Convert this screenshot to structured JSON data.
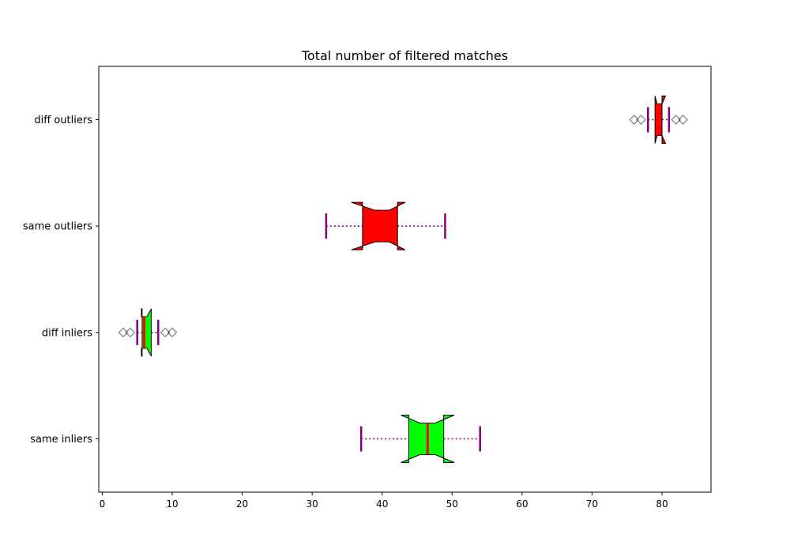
{
  "chart_data": {
    "type": "boxplot",
    "orientation": "horizontal",
    "title": "Total number of filtered matches",
    "xlabel": "",
    "ylabel": "",
    "xlim": [
      -0.5,
      87
    ],
    "xticks": [
      0,
      10,
      20,
      30,
      40,
      50,
      60,
      70,
      80
    ],
    "grid": false,
    "notched": true,
    "categories": [
      "same inliers",
      "diff inliers",
      "same outliers",
      "diff outliers"
    ],
    "boxes": [
      {
        "label": "same inliers",
        "whisker_low": 37,
        "q1": 43.8,
        "notch_low": 45.4,
        "median": 46.5,
        "notch_high": 47.6,
        "q3": 48.8,
        "whisker_high": 54,
        "notch_lo_extent": 42.7,
        "notch_hi_extent": 50.3,
        "fill": "#00ff00",
        "fliers": []
      },
      {
        "label": "diff inliers",
        "whisker_low": 5,
        "q1": 5.7,
        "notch_low": 5.6,
        "median": 6,
        "notch_high": 6.4,
        "q3": 7,
        "whisker_high": 8,
        "notch_lo_extent": 5.6,
        "notch_hi_extent": 7,
        "fill": "#00ff00",
        "fliers": [
          3,
          4,
          9,
          10
        ]
      },
      {
        "label": "same outliers",
        "whisker_low": 32,
        "q1": 37.2,
        "notch_low": 39,
        "median": 40,
        "notch_high": 41,
        "q3": 42.2,
        "whisker_high": 49,
        "notch_lo_extent": 35.6,
        "notch_hi_extent": 43.3,
        "fill": "#ff0000",
        "fliers": []
      },
      {
        "label": "diff outliers",
        "whisker_low": 78,
        "q1": 79,
        "notch_low": 79.3,
        "median": 79.6,
        "notch_high": 80,
        "q3": 80,
        "whisker_high": 81,
        "notch_lo_extent": 79,
        "notch_hi_extent": 80.5,
        "fill": "#ff0000",
        "fliers": [
          76,
          77,
          82,
          83
        ]
      }
    ],
    "colors": {
      "median": "#ff0000",
      "whisker": "#800080",
      "box_edge": "#000000",
      "flier_edge": "#000000"
    }
  }
}
